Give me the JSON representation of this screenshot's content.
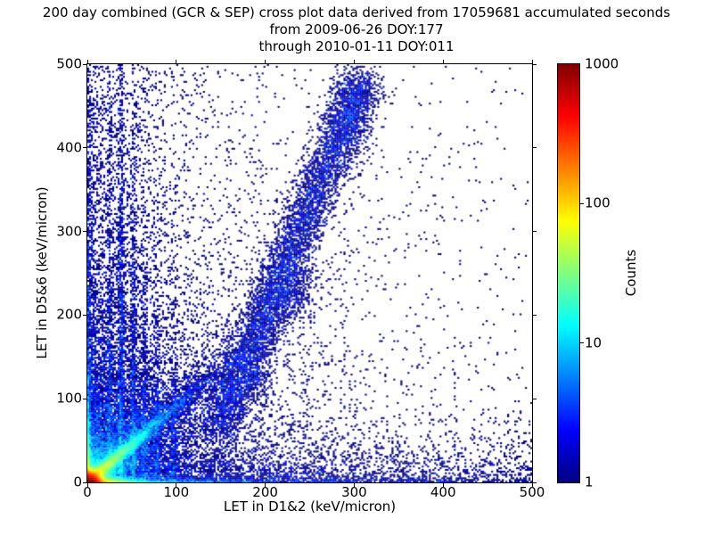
{
  "title": {
    "line1": "200 day combined (GCR & SEP) cross plot data derived from 17059681 accumulated seconds",
    "line2": "from 2009-06-26 DOY:177",
    "line3": "through 2010-01-11 DOY:011"
  },
  "chart_data": {
    "type": "scatter",
    "subtype": "2d-histogram-density-crossplot",
    "title": "200 day combined (GCR & SEP) cross plot data derived from 17059681 accumulated seconds from 2009-06-26 DOY:177 through 2010-01-11 DOY:011",
    "period": {
      "days": 200,
      "accumulated_seconds": 17059681,
      "start": "2009-06-26",
      "start_doy": 177,
      "end": "2010-01-11",
      "end_doy": 11
    },
    "xlabel": "LET in D1&2 (keV/micron)",
    "ylabel": "LET in D5&6 (keV/micron)",
    "xlim": [
      0,
      500
    ],
    "ylim": [
      0,
      500
    ],
    "xticks": [
      "0",
      "100",
      "200",
      "300",
      "400",
      "500"
    ],
    "yticks": [
      "0",
      "100",
      "200",
      "300",
      "400",
      "500"
    ],
    "grid": false,
    "background": "#ffffff",
    "point_color_min": "#000080",
    "colorbar": {
      "label": "Counts",
      "scale": "log",
      "min": 1,
      "max": 1000,
      "tick_labels": [
        "1",
        "10",
        "100",
        "1000"
      ],
      "minor_tick_marks": [
        "10",
        "100"
      ],
      "colormap": "jet"
    },
    "density_model": {
      "comment": "Counts-per-2x2-bin intensity model reproducing the observed density structure: hot red/orange origin, heated bands hugging both axes, cyan-green diagonal ridge y~0.9x from origin, blue scatter fan, faint vertical streaks at low LET, a steep sparse track from (150,75) to (305,470) with blobs at (228,230) and (297,440), and sparse far-field dots.",
      "seed": 42,
      "cell_data_units": 2,
      "components": [
        {
          "kind": "blob",
          "A": 950,
          "cx": 0,
          "cy": 0,
          "sx": 7,
          "sy": 6
        },
        {
          "kind": "exp2",
          "A": 420,
          "sx": 16,
          "sy": 2.6
        },
        {
          "kind": "exp2",
          "A": 12,
          "sx": 130,
          "sy": 2.8
        },
        {
          "kind": "exp2",
          "A": 2.6,
          "sx": 420,
          "sy": 2.2
        },
        {
          "kind": "exp2",
          "A": 160,
          "sx": 1.8,
          "sy": 22
        },
        {
          "kind": "exp2",
          "A": 9,
          "sx": 2.4,
          "sy": 140
        },
        {
          "kind": "exp2",
          "A": 1.2,
          "sx": 2.8,
          "sy": 420
        },
        {
          "kind": "ridge",
          "A": 80,
          "m": 0.9,
          "w": 4,
          "decay": 28
        },
        {
          "kind": "ridge",
          "A": 8,
          "m": 0.9,
          "w": 13,
          "decay": 55
        },
        {
          "kind": "radial",
          "A": 7,
          "s": 42
        },
        {
          "kind": "exp2",
          "A": 3.2,
          "sx": 28,
          "sy": 110
        },
        {
          "kind": "exp2",
          "A": 0.4,
          "sx": 65,
          "sy": 1200
        },
        {
          "kind": "exp2",
          "A": 1.0,
          "sx": 900,
          "sy": 26
        },
        {
          "kind": "radial",
          "A": 0.5,
          "s": 120
        },
        {
          "kind": "uniform",
          "A": 0.006
        },
        {
          "kind": "vstreak",
          "A": 4,
          "xc": 25,
          "w": 1.8,
          "decay": 150
        },
        {
          "kind": "vstreak",
          "A": 5,
          "xc": 38,
          "w": 2.0,
          "decay": 200
        },
        {
          "kind": "vstreak",
          "A": 4,
          "xc": 52,
          "w": 2.0,
          "decay": 170
        },
        {
          "kind": "vstreak",
          "A": 3,
          "xc": 64,
          "w": 2.0,
          "decay": 120
        },
        {
          "kind": "vstreak",
          "A": 2.5,
          "xc": 78,
          "w": 2.0,
          "decay": 90
        },
        {
          "kind": "vstreak",
          "A": 2.0,
          "xc": 97,
          "w": 2.2,
          "decay": 70
        },
        {
          "kind": "band",
          "A": 1.6,
          "x1": 150,
          "y1": 75,
          "x2": 305,
          "y2": 470,
          "w": 13
        },
        {
          "kind": "blob",
          "A": 1.0,
          "cx": 228,
          "cy": 230,
          "sx": 14,
          "sy": 20
        },
        {
          "kind": "blob",
          "A": 0.9,
          "cx": 297,
          "cy": 440,
          "sx": 14,
          "sy": 26
        },
        {
          "kind": "blob",
          "A": 0.8,
          "cx": 190,
          "cy": 120,
          "sx": 11,
          "sy": 13
        }
      ]
    }
  }
}
